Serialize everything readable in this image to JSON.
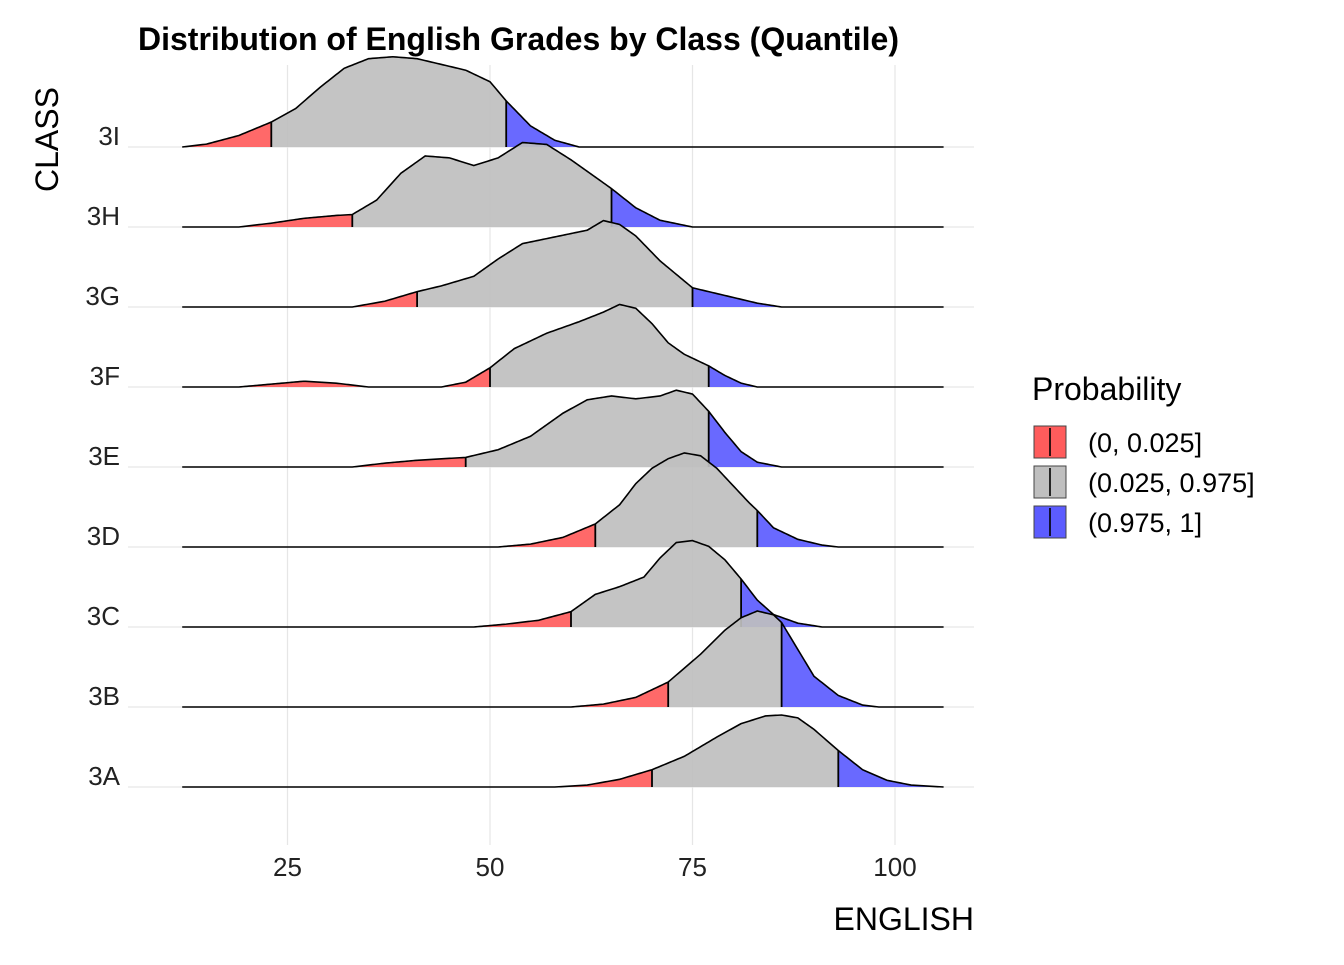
{
  "chart_data": {
    "type": "ridgeline",
    "title": "Distribution of English Grades by Class (Quantile)",
    "xlabel": "ENGLISH",
    "ylabel": "CLASS",
    "xlim": [
      10,
      110
    ],
    "x_ticks": [
      25,
      50,
      75,
      100
    ],
    "grid": true,
    "legend": {
      "title": "Probability",
      "placement": "right",
      "entries": [
        {
          "label": "(0, 0.025]",
          "color": "#ff5c5c"
        },
        {
          "label": "(0.025, 0.975]",
          "color": "#bfbfbf"
        },
        {
          "label": "(0.975, 1]",
          "color": "#5c5cff"
        }
      ]
    },
    "series": [
      {
        "name": "3A",
        "q_low": 70,
        "q_high": 93,
        "range": [
          12,
          106
        ],
        "density": [
          [
            58,
            0
          ],
          [
            62,
            0.02
          ],
          [
            66,
            0.08
          ],
          [
            70,
            0.18
          ],
          [
            74,
            0.32
          ],
          [
            78,
            0.52
          ],
          [
            81,
            0.66
          ],
          [
            84,
            0.74
          ],
          [
            86,
            0.75
          ],
          [
            88,
            0.72
          ],
          [
            90,
            0.6
          ],
          [
            93,
            0.38
          ],
          [
            96,
            0.18
          ],
          [
            99,
            0.07
          ],
          [
            102,
            0.02
          ],
          [
            106,
            0
          ]
        ]
      },
      {
        "name": "3B",
        "q_low": 72,
        "q_high": 86,
        "range": [
          12,
          106
        ],
        "density": [
          [
            60,
            0
          ],
          [
            64,
            0.03
          ],
          [
            68,
            0.1
          ],
          [
            72,
            0.26
          ],
          [
            76,
            0.55
          ],
          [
            79,
            0.8
          ],
          [
            81,
            0.93
          ],
          [
            83,
            1.0
          ],
          [
            85,
            0.96
          ],
          [
            86,
            0.88
          ],
          [
            88,
            0.6
          ],
          [
            90,
            0.32
          ],
          [
            93,
            0.12
          ],
          [
            96,
            0.02
          ],
          [
            98,
            0
          ]
        ]
      },
      {
        "name": "3C",
        "q_low": 60,
        "q_high": 81,
        "range": [
          12,
          106
        ],
        "density": [
          [
            48,
            0
          ],
          [
            52,
            0.03
          ],
          [
            56,
            0.07
          ],
          [
            60,
            0.16
          ],
          [
            63,
            0.34
          ],
          [
            66,
            0.42
          ],
          [
            69,
            0.52
          ],
          [
            71,
            0.72
          ],
          [
            73,
            0.88
          ],
          [
            75,
            0.9
          ],
          [
            77,
            0.84
          ],
          [
            79,
            0.7
          ],
          [
            81,
            0.5
          ],
          [
            83,
            0.28
          ],
          [
            85,
            0.13
          ],
          [
            88,
            0.04
          ],
          [
            91,
            0
          ]
        ]
      },
      {
        "name": "3D",
        "q_low": 63,
        "q_high": 83,
        "range": [
          12,
          106
        ],
        "density": [
          [
            51,
            0
          ],
          [
            55,
            0.03
          ],
          [
            59,
            0.1
          ],
          [
            63,
            0.24
          ],
          [
            66,
            0.44
          ],
          [
            68,
            0.66
          ],
          [
            70,
            0.82
          ],
          [
            72,
            0.92
          ],
          [
            74,
            0.98
          ],
          [
            76,
            0.95
          ],
          [
            78,
            0.82
          ],
          [
            80,
            0.64
          ],
          [
            82,
            0.46
          ],
          [
            83,
            0.38
          ],
          [
            85,
            0.2
          ],
          [
            88,
            0.08
          ],
          [
            91,
            0.02
          ],
          [
            93,
            0
          ]
        ]
      },
      {
        "name": "3E",
        "q_low": 47,
        "q_high": 77,
        "range": [
          12,
          106
        ],
        "density": [
          [
            33,
            0
          ],
          [
            37,
            0.04
          ],
          [
            41,
            0.07
          ],
          [
            45,
            0.09
          ],
          [
            47,
            0.1
          ],
          [
            51,
            0.18
          ],
          [
            55,
            0.32
          ],
          [
            59,
            0.56
          ],
          [
            62,
            0.7
          ],
          [
            65,
            0.74
          ],
          [
            68,
            0.71
          ],
          [
            71,
            0.74
          ],
          [
            73,
            0.8
          ],
          [
            75,
            0.76
          ],
          [
            77,
            0.58
          ],
          [
            79,
            0.36
          ],
          [
            81,
            0.16
          ],
          [
            83,
            0.05
          ],
          [
            86,
            0
          ]
        ]
      },
      {
        "name": "3F",
        "q_low": 50,
        "q_high": 77,
        "range": [
          12,
          106
        ],
        "density": [
          [
            19,
            0
          ],
          [
            23,
            0.03
          ],
          [
            27,
            0.06
          ],
          [
            31,
            0.04
          ],
          [
            35,
            0
          ],
          [
            44,
            0
          ],
          [
            47,
            0.05
          ],
          [
            50,
            0.2
          ],
          [
            53,
            0.4
          ],
          [
            57,
            0.56
          ],
          [
            61,
            0.68
          ],
          [
            64,
            0.78
          ],
          [
            66,
            0.86
          ],
          [
            68,
            0.82
          ],
          [
            70,
            0.66
          ],
          [
            72,
            0.46
          ],
          [
            74,
            0.34
          ],
          [
            77,
            0.22
          ],
          [
            79,
            0.12
          ],
          [
            81,
            0.04
          ],
          [
            83,
            0
          ]
        ]
      },
      {
        "name": "3G",
        "q_low": 41,
        "q_high": 75,
        "range": [
          12,
          106
        ],
        "density": [
          [
            33,
            0
          ],
          [
            37,
            0.06
          ],
          [
            41,
            0.16
          ],
          [
            44,
            0.22
          ],
          [
            48,
            0.32
          ],
          [
            51,
            0.5
          ],
          [
            54,
            0.66
          ],
          [
            58,
            0.73
          ],
          [
            62,
            0.8
          ],
          [
            64,
            0.9
          ],
          [
            66,
            0.86
          ],
          [
            68,
            0.74
          ],
          [
            71,
            0.48
          ],
          [
            75,
            0.2
          ],
          [
            79,
            0.12
          ],
          [
            83,
            0.04
          ],
          [
            86,
            0
          ]
        ]
      },
      {
        "name": "3H",
        "q_low": 33,
        "q_high": 65,
        "range": [
          12,
          106
        ],
        "density": [
          [
            19,
            0
          ],
          [
            23,
            0.04
          ],
          [
            27,
            0.09
          ],
          [
            31,
            0.12
          ],
          [
            33,
            0.13
          ],
          [
            36,
            0.28
          ],
          [
            39,
            0.56
          ],
          [
            42,
            0.74
          ],
          [
            45,
            0.72
          ],
          [
            48,
            0.64
          ],
          [
            51,
            0.72
          ],
          [
            54,
            0.88
          ],
          [
            57,
            0.86
          ],
          [
            60,
            0.7
          ],
          [
            63,
            0.52
          ],
          [
            65,
            0.4
          ],
          [
            68,
            0.2
          ],
          [
            71,
            0.07
          ],
          [
            75,
            0
          ]
        ]
      },
      {
        "name": "3I",
        "q_low": 23,
        "q_high": 52,
        "range": [
          12,
          106
        ],
        "density": [
          [
            12,
            0
          ],
          [
            15,
            0.03
          ],
          [
            19,
            0.12
          ],
          [
            23,
            0.26
          ],
          [
            26,
            0.4
          ],
          [
            29,
            0.62
          ],
          [
            32,
            0.82
          ],
          [
            35,
            0.92
          ],
          [
            38,
            0.94
          ],
          [
            41,
            0.92
          ],
          [
            44,
            0.86
          ],
          [
            47,
            0.8
          ],
          [
            50,
            0.68
          ],
          [
            52,
            0.48
          ],
          [
            55,
            0.22
          ],
          [
            58,
            0.07
          ],
          [
            61,
            0
          ]
        ]
      }
    ]
  }
}
